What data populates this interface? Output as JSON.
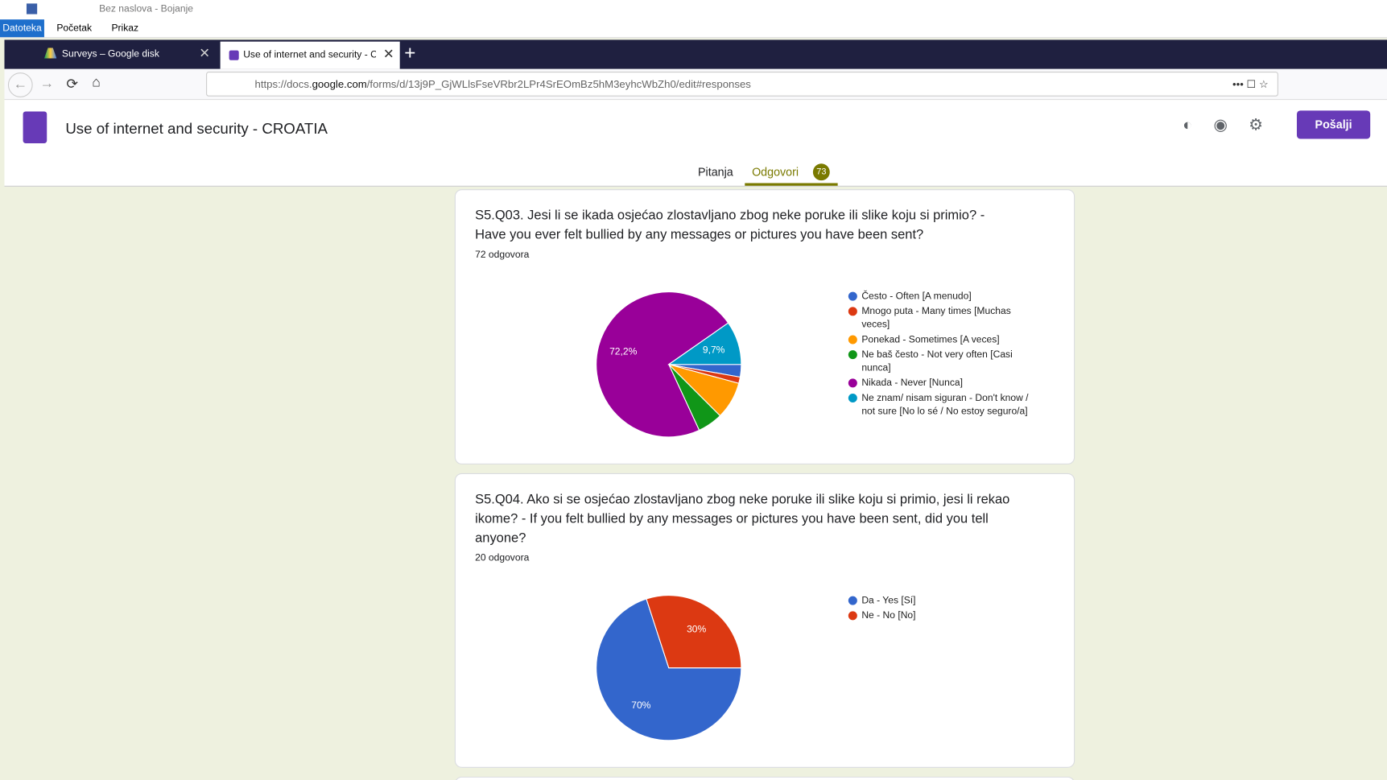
{
  "window": {
    "title": "Bez naslova - Bojanje",
    "menu": [
      "Datoteka",
      "Početak",
      "Prikaz"
    ]
  },
  "browser": {
    "tabs": [
      "Surveys – Google disk",
      "Use of internet and security - C"
    ],
    "url_prefix": "https://docs.",
    "url_domain": "google.com",
    "url_path": "/forms/d/13j9P_GjWLlsFseVRbr2LPr4SrEOmBz5hM3eyhcWbZh0/edit#responses"
  },
  "form": {
    "title": "Use of internet and security - CROATIA",
    "send": "Pošalji",
    "tabs": [
      "Pitanja",
      "Odgovori"
    ],
    "response_count": 73
  },
  "chart_data": [
    {
      "type": "pie",
      "title": "S5.Q03. Jesi li se ikada osjećao zlostavljano zbog neke poruke ili slike koju si primio? - Have you ever felt bullied by any messages or pictures you have been sent?",
      "subtitle": "72 odgovora",
      "categories": [
        "Često - Often [A menudo]",
        "Mnogo puta - Many times [Muchas veces]",
        "Ponekad - Sometimes [A veces]",
        "Ne baš često - Not very often [Casi nunca]",
        "Nikada - Never [Nunca]",
        "Ne znam/ nisam siguran - Don't know / not sure [No lo sé / No estoy seguro/a]"
      ],
      "values": [
        2.8,
        1.4,
        8.3,
        5.6,
        72.2,
        9.7
      ],
      "value_labels": [
        null,
        null,
        null,
        null,
        "72,2%",
        "9,7%"
      ],
      "colors": [
        "#3366cc",
        "#dc3912",
        "#ff9900",
        "#109618",
        "#990099",
        "#0099c6"
      ]
    },
    {
      "type": "pie",
      "title": "S5.Q04. Ako si se osjećao zlostavljano zbog neke poruke ili slike koju si primio, jesi li rekao ikome? - If you felt bullied by any messages or pictures you have been sent, did you tell anyone?",
      "subtitle": "20 odgovora",
      "categories": [
        "Da - Yes [Sí]",
        "Ne - No [No]"
      ],
      "values": [
        70,
        30
      ],
      "value_labels": [
        "70%",
        "30%"
      ],
      "colors": [
        "#3366cc",
        "#dc3912"
      ]
    }
  ]
}
